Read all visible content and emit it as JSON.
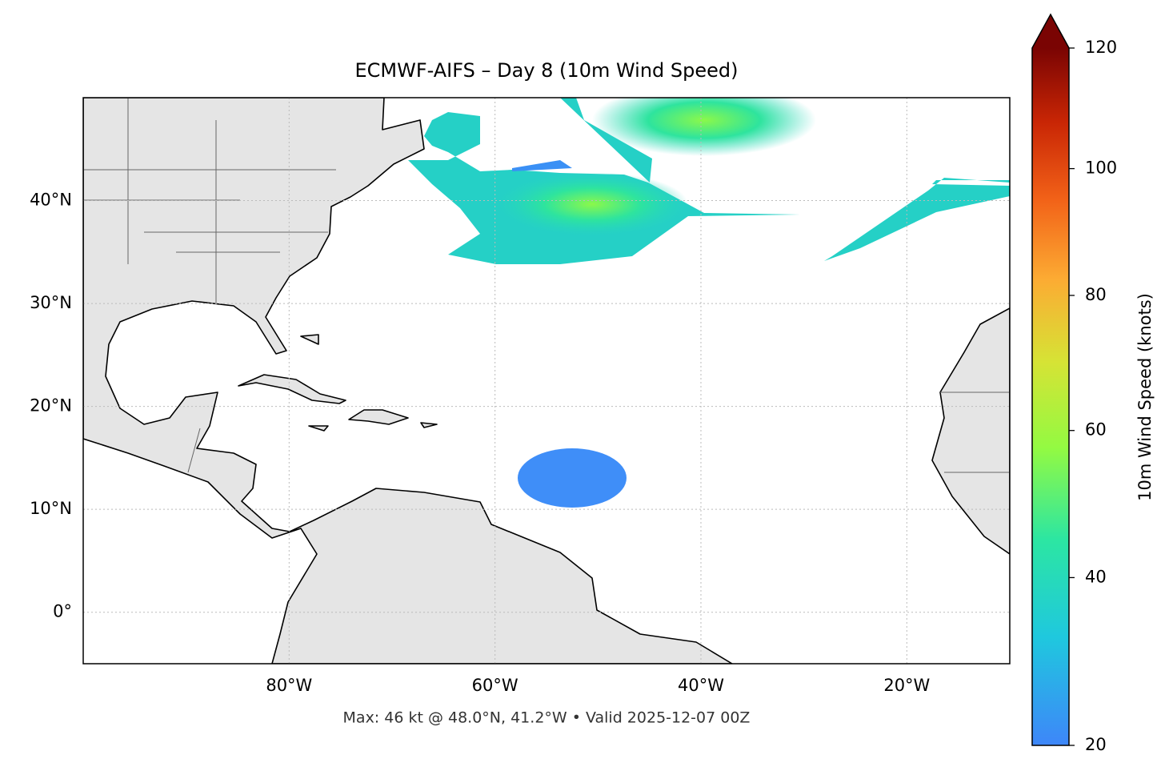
{
  "chart_data": {
    "type": "map",
    "title": "ECMWF-AIFS – Day 8 (10m Wind Speed)",
    "footnote": "Max: 46 kt @ 48.0°N, 41.2°W • Valid 2025-12-07 00Z",
    "xlim": [
      -100,
      -10
    ],
    "ylim": [
      -5,
      50
    ],
    "xticks": [
      {
        "value": -80,
        "label": "80°W"
      },
      {
        "value": -60,
        "label": "60°W"
      },
      {
        "value": -40,
        "label": "40°W"
      },
      {
        "value": -20,
        "label": "20°W"
      }
    ],
    "yticks": [
      {
        "value": 0,
        "label": "0°"
      },
      {
        "value": 10,
        "label": "10°N"
      },
      {
        "value": 20,
        "label": "20°N"
      },
      {
        "value": 30,
        "label": "30°N"
      },
      {
        "value": 40,
        "label": "40°N"
      }
    ],
    "grid": true,
    "colorbar": {
      "label": "10m Wind Speed (knots)",
      "lim": [
        20,
        120
      ],
      "ticks": [
        20,
        40,
        60,
        80,
        100,
        120
      ],
      "scale": "power",
      "gamma": 0.75,
      "extend": "max",
      "colors": [
        "#3e86f9",
        "#1fc8de",
        "#2ce6a2",
        "#93fa42",
        "#d6e335",
        "#fcab33",
        "#f26218",
        "#c92605",
        "#7a0403"
      ]
    }
  }
}
